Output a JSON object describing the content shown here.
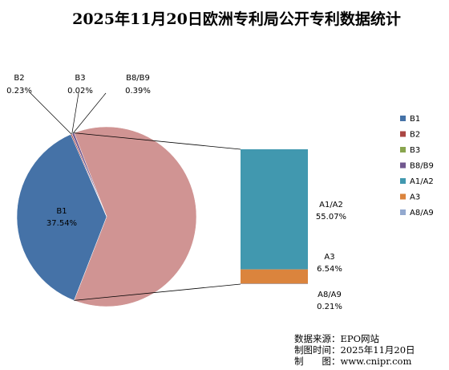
{
  "chart_data": {
    "type": "pie",
    "title": "2025年11月20日欧洲专利局公开专利数据统计",
    "slices": [
      {
        "name": "B1",
        "value": 37.54,
        "label": "37.54%",
        "color": "#4572A7"
      },
      {
        "name": "B2",
        "value": 0.23,
        "label": "0.23%",
        "color": "#AA4643"
      },
      {
        "name": "B3",
        "value": 0.02,
        "label": "0.02%",
        "color": "#89A54E"
      },
      {
        "name": "B8/B9",
        "value": 0.39,
        "label": "0.39%",
        "color": "#71588F"
      },
      {
        "name": "A1/A2",
        "value": 55.07,
        "label": "55.07%",
        "color": "#4198AF"
      },
      {
        "name": "A3",
        "value": 6.54,
        "label": "6.54%",
        "color": "#DB843D"
      },
      {
        "name": "A8/A9",
        "value": 0.21,
        "label": "0.21%",
        "color": "#93A9CF"
      }
    ],
    "other_slice_color": "#D09493",
    "breakout": [
      "A1/A2",
      "A3",
      "A8/A9"
    ],
    "legend_position": "right"
  },
  "footer": {
    "source": "数据来源：EPO网站",
    "date": "制图时间：2025年11月20日",
    "maker": "制　　图：www.cnipr.com"
  }
}
